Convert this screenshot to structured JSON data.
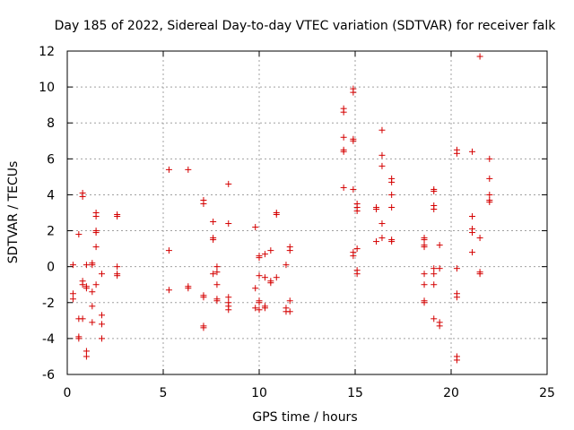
{
  "chart_data": {
    "type": "scatter",
    "title": "Day 185 of 2022, Sidereal Day-to-day VTEC variation (SDTVAR) for receiver falk",
    "xlabel": "GPS time / hours",
    "ylabel": "SDTVAR / TECUs",
    "xlim": [
      0,
      25
    ],
    "ylim": [
      -6,
      12
    ],
    "xticks": [
      0,
      5,
      10,
      15,
      20,
      25
    ],
    "yticks": [
      -6,
      -4,
      -2,
      0,
      2,
      4,
      6,
      8,
      10,
      12
    ],
    "xtick_labels": [
      "0",
      "5",
      "10",
      "15",
      "20",
      "25"
    ],
    "ytick_labels": [
      "-6",
      "-4",
      "-2",
      "0",
      "2",
      "4",
      "6",
      "8",
      "10",
      "12"
    ],
    "grid": true,
    "marker": "+",
    "color": "#d40000",
    "points": [
      [
        0.3,
        0.1
      ],
      [
        0.3,
        -1.5
      ],
      [
        0.3,
        -1.8
      ],
      [
        0.6,
        1.8
      ],
      [
        0.6,
        -2.9
      ],
      [
        0.6,
        -3.9
      ],
      [
        0.6,
        -4.0
      ],
      [
        0.8,
        4.1
      ],
      [
        0.8,
        3.9
      ],
      [
        0.8,
        -0.8
      ],
      [
        0.8,
        -1.0
      ],
      [
        0.8,
        -2.9
      ],
      [
        1.0,
        -1.1
      ],
      [
        1.0,
        -1.2
      ],
      [
        1.0,
        0.1
      ],
      [
        1.0,
        -4.7
      ],
      [
        1.0,
        -5.0
      ],
      [
        1.3,
        0.1
      ],
      [
        1.3,
        0.2
      ],
      [
        1.3,
        -1.4
      ],
      [
        1.3,
        -2.2
      ],
      [
        1.3,
        -3.1
      ],
      [
        1.5,
        3.0
      ],
      [
        1.5,
        2.8
      ],
      [
        1.5,
        2.0
      ],
      [
        1.5,
        1.9
      ],
      [
        1.5,
        1.1
      ],
      [
        1.5,
        -1.0
      ],
      [
        1.8,
        -0.4
      ],
      [
        1.8,
        -2.7
      ],
      [
        1.8,
        -3.2
      ],
      [
        1.8,
        -4.0
      ],
      [
        2.6,
        2.9
      ],
      [
        2.6,
        2.8
      ],
      [
        2.6,
        0.0
      ],
      [
        2.6,
        -0.4
      ],
      [
        2.6,
        -0.5
      ],
      [
        5.3,
        5.4
      ],
      [
        5.3,
        0.9
      ],
      [
        5.3,
        -1.3
      ],
      [
        6.3,
        5.4
      ],
      [
        6.3,
        -1.1
      ],
      [
        6.3,
        -1.2
      ],
      [
        7.1,
        3.7
      ],
      [
        7.1,
        3.5
      ],
      [
        7.1,
        -1.6
      ],
      [
        7.1,
        -1.7
      ],
      [
        7.1,
        -3.3
      ],
      [
        7.1,
        -3.4
      ],
      [
        7.6,
        2.5
      ],
      [
        7.6,
        1.6
      ],
      [
        7.6,
        1.5
      ],
      [
        7.6,
        -0.4
      ],
      [
        7.8,
        0.0
      ],
      [
        7.8,
        -0.3
      ],
      [
        7.8,
        -1.0
      ],
      [
        7.8,
        -1.8
      ],
      [
        7.8,
        -1.9
      ],
      [
        8.4,
        4.6
      ],
      [
        8.4,
        2.4
      ],
      [
        8.4,
        -1.7
      ],
      [
        8.4,
        -2.0
      ],
      [
        8.4,
        -2.2
      ],
      [
        8.4,
        -2.4
      ],
      [
        9.8,
        2.2
      ],
      [
        9.8,
        -1.2
      ],
      [
        9.8,
        -2.3
      ],
      [
        10.0,
        0.6
      ],
      [
        10.0,
        0.5
      ],
      [
        10.0,
        -0.5
      ],
      [
        10.0,
        -1.9
      ],
      [
        10.0,
        -2.0
      ],
      [
        10.0,
        -2.4
      ],
      [
        10.3,
        0.7
      ],
      [
        10.3,
        -0.6
      ],
      [
        10.3,
        -2.2
      ],
      [
        10.3,
        -2.3
      ],
      [
        10.6,
        0.9
      ],
      [
        10.6,
        -0.8
      ],
      [
        10.6,
        -0.9
      ],
      [
        10.9,
        3.0
      ],
      [
        10.9,
        2.9
      ],
      [
        10.9,
        -0.6
      ],
      [
        11.4,
        0.1
      ],
      [
        11.4,
        -2.3
      ],
      [
        11.4,
        -2.5
      ],
      [
        11.6,
        1.1
      ],
      [
        11.6,
        0.9
      ],
      [
        11.6,
        -1.9
      ],
      [
        11.6,
        -2.5
      ],
      [
        14.4,
        8.8
      ],
      [
        14.4,
        8.6
      ],
      [
        14.4,
        7.2
      ],
      [
        14.4,
        6.5
      ],
      [
        14.4,
        6.4
      ],
      [
        14.4,
        4.4
      ],
      [
        14.9,
        9.9
      ],
      [
        14.9,
        9.7
      ],
      [
        14.9,
        7.1
      ],
      [
        14.9,
        7.0
      ],
      [
        14.9,
        4.3
      ],
      [
        14.9,
        0.8
      ],
      [
        14.9,
        0.6
      ],
      [
        15.1,
        3.5
      ],
      [
        15.1,
        3.3
      ],
      [
        15.1,
        3.1
      ],
      [
        15.1,
        1.0
      ],
      [
        15.1,
        -0.2
      ],
      [
        15.1,
        -0.4
      ],
      [
        16.1,
        3.3
      ],
      [
        16.1,
        3.2
      ],
      [
        16.1,
        1.4
      ],
      [
        16.4,
        7.6
      ],
      [
        16.4,
        6.2
      ],
      [
        16.4,
        5.6
      ],
      [
        16.4,
        2.4
      ],
      [
        16.4,
        1.6
      ],
      [
        16.9,
        4.9
      ],
      [
        16.9,
        4.7
      ],
      [
        16.9,
        4.0
      ],
      [
        16.9,
        3.3
      ],
      [
        16.9,
        1.5
      ],
      [
        16.9,
        1.4
      ],
      [
        18.6,
        1.6
      ],
      [
        18.6,
        1.5
      ],
      [
        18.6,
        1.2
      ],
      [
        18.6,
        1.1
      ],
      [
        18.6,
        -0.4
      ],
      [
        18.6,
        -1.0
      ],
      [
        18.6,
        -1.9
      ],
      [
        18.6,
        -2.0
      ],
      [
        19.1,
        4.3
      ],
      [
        19.1,
        4.2
      ],
      [
        19.1,
        3.4
      ],
      [
        19.1,
        3.2
      ],
      [
        19.1,
        -0.1
      ],
      [
        19.1,
        -0.4
      ],
      [
        19.1,
        -1.0
      ],
      [
        19.1,
        -2.9
      ],
      [
        19.4,
        1.2
      ],
      [
        19.4,
        -0.1
      ],
      [
        19.4,
        -3.1
      ],
      [
        19.4,
        -3.3
      ],
      [
        20.3,
        6.5
      ],
      [
        20.3,
        6.3
      ],
      [
        20.3,
        -0.1
      ],
      [
        20.3,
        -1.5
      ],
      [
        20.3,
        -1.7
      ],
      [
        20.3,
        -5.0
      ],
      [
        20.3,
        -5.2
      ],
      [
        21.1,
        6.4
      ],
      [
        21.1,
        2.8
      ],
      [
        21.1,
        2.1
      ],
      [
        21.1,
        1.9
      ],
      [
        21.1,
        0.8
      ],
      [
        21.5,
        11.7
      ],
      [
        21.5,
        1.6
      ],
      [
        21.5,
        -0.3
      ],
      [
        21.5,
        -0.4
      ],
      [
        22.0,
        6.0
      ],
      [
        22.0,
        4.9
      ],
      [
        22.0,
        4.0
      ],
      [
        22.0,
        3.7
      ],
      [
        22.0,
        3.6
      ]
    ]
  }
}
